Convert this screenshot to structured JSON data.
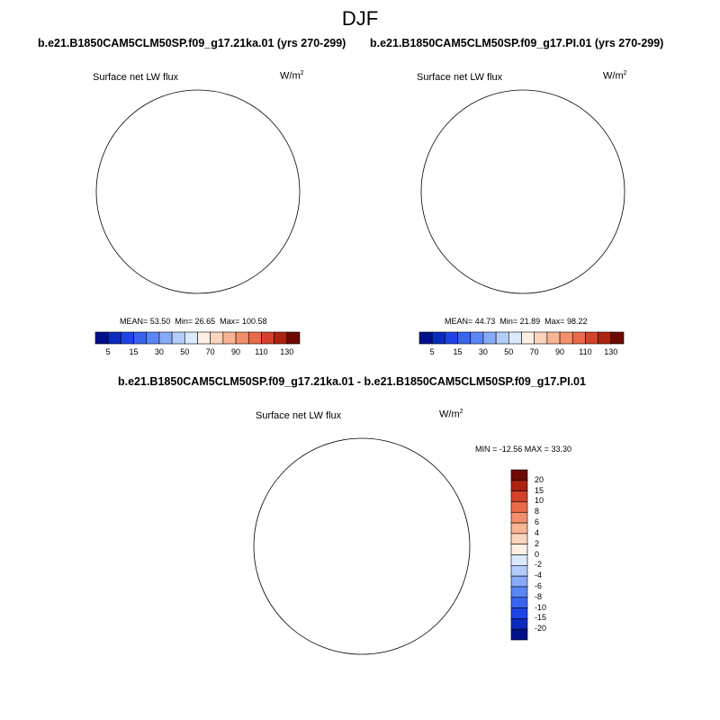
{
  "season": "DJF",
  "panels": [
    {
      "title": "b.e21.B1850CAM5CLM50SP.f09_g17.21ka.01 (yrs 270-299)",
      "variable": "Surface net LW flux",
      "units": "W/m",
      "units_exp": "2",
      "mean_label": "MEAN=",
      "mean": "53.50",
      "min_label": "Min=",
      "min": "26.65",
      "max_label": "Max=",
      "max": "100.58"
    },
    {
      "title": "b.e21.B1850CAM5CLM50SP.f09_g17.PI.01 (yrs 270-299)",
      "variable": "Surface net LW flux",
      "units": "W/m",
      "units_exp": "2",
      "mean_label": "MEAN=",
      "mean": "44.73",
      "min_label": "Min=",
      "min": "21.89",
      "max_label": "Max=",
      "max": "98.22"
    }
  ],
  "diff_panel": {
    "title": "b.e21.B1850CAM5CLM50SP.f09_g17.21ka.01 - b.e21.B1850CAM5CLM50SP.f09_g17.PI.01",
    "variable": "Surface net LW flux",
    "units": "W/m",
    "units_exp": "2",
    "minmax": "MIN = -12.56 MAX =  33.30"
  },
  "colorbar_abs": {
    "colors": [
      "#00108a",
      "#0a2bbd",
      "#1e44e6",
      "#3a64f0",
      "#5a86f5",
      "#86aaf7",
      "#b2cdfa",
      "#dbe9fc",
      "#fff0e6",
      "#fbd4bd",
      "#f8b493",
      "#f38f6c",
      "#ea6a49",
      "#d5422a",
      "#ad2311",
      "#6e0a04"
    ],
    "ticks": [
      "5",
      "15",
      "30",
      "50",
      "70",
      "90",
      "110",
      "130"
    ]
  },
  "colorbar_diff": {
    "colors": [
      "#6e0a04",
      "#ad2311",
      "#d5422a",
      "#ea6a49",
      "#f38f6c",
      "#f8b493",
      "#fbd4bd",
      "#fff0e6",
      "#dbe9fc",
      "#b2cdfa",
      "#86aaf7",
      "#5a86f5",
      "#3a64f0",
      "#1e44e6",
      "#0a2bbd",
      "#00108a"
    ],
    "ticks": [
      "20",
      "15",
      "10",
      "8",
      "6",
      "4",
      "2",
      "0",
      "-2",
      "-4",
      "-6",
      "-8",
      "-10",
      "-15",
      "-20"
    ]
  }
}
